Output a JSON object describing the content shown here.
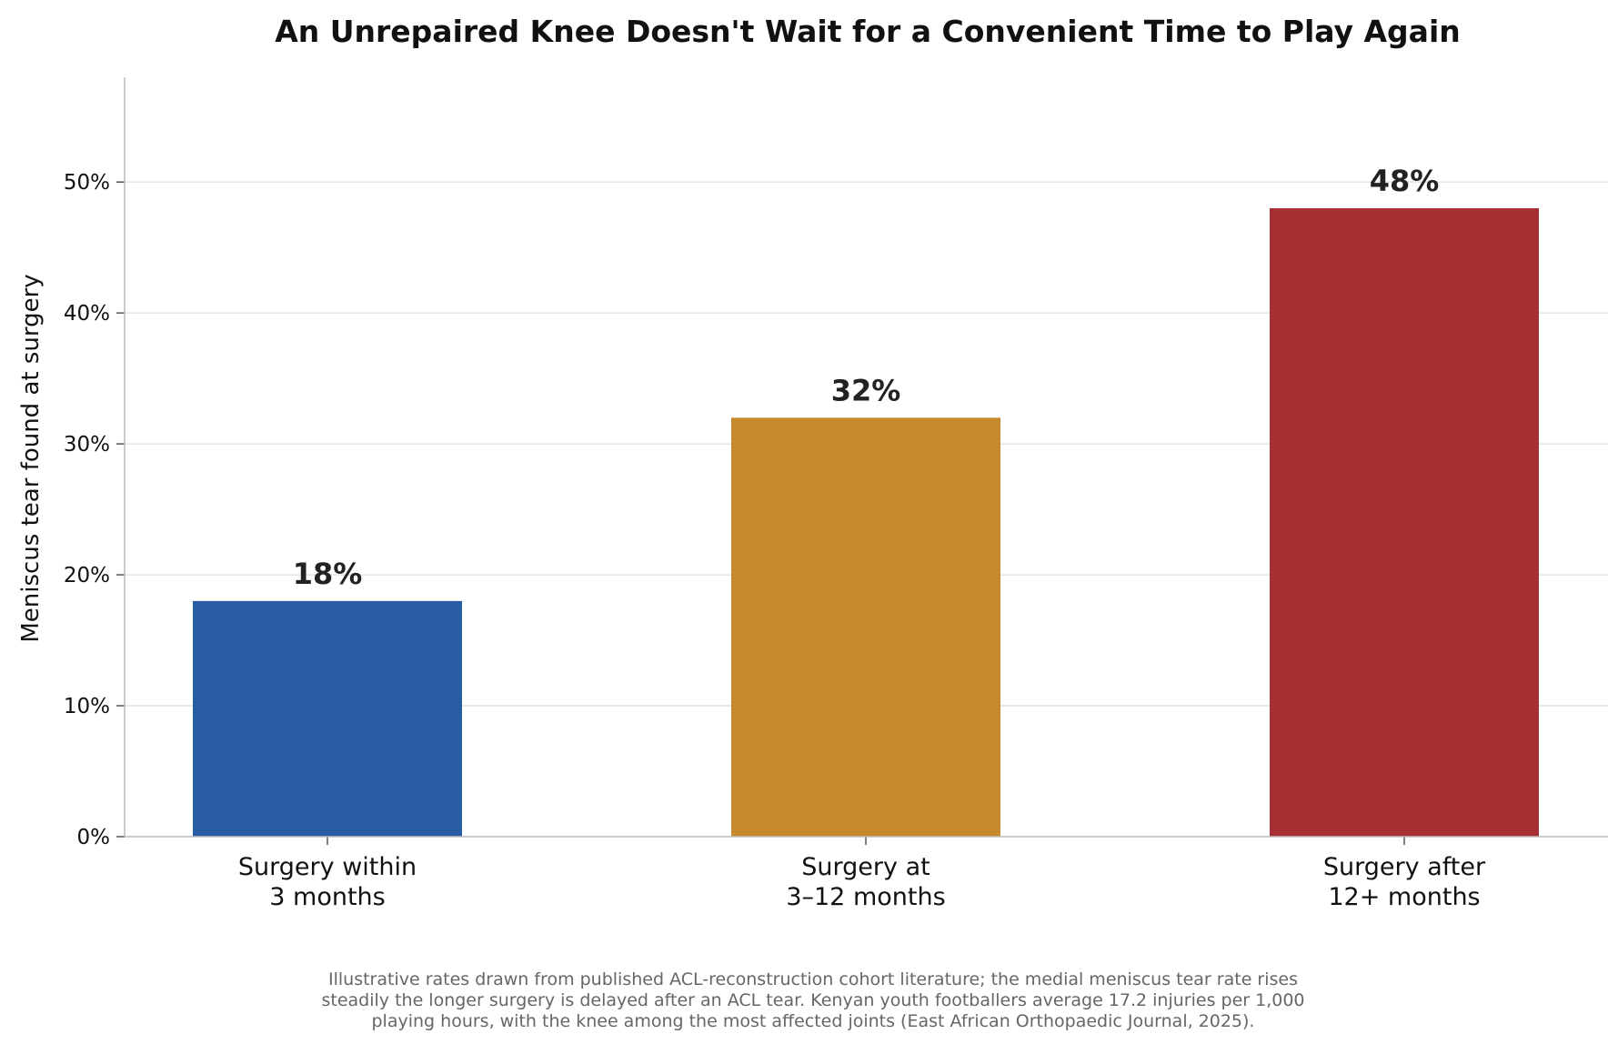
{
  "chart_data": {
    "type": "bar",
    "title": "An Unrepaired Knee Doesn't Wait for a Convenient Time to Play Again",
    "ylabel": "Meniscus tear found at surgery",
    "xlabel": "",
    "categories": [
      [
        "Surgery within",
        "3 months"
      ],
      [
        "Surgery at",
        "3–12 months"
      ],
      [
        "Surgery after",
        "12+ months"
      ]
    ],
    "values": [
      18,
      32,
      48
    ],
    "value_labels": [
      "18%",
      "32%",
      "48%"
    ],
    "colors": [
      "#2a5ca6",
      "#c68a2c",
      "#a63033"
    ],
    "ylim": [
      0,
      58
    ],
    "yticks": [
      0,
      10,
      20,
      30,
      40,
      50
    ],
    "ytick_labels": [
      "0%",
      "10%",
      "20%",
      "30%",
      "40%",
      "50%"
    ],
    "grid": true,
    "footnote": [
      "Illustrative rates drawn from published ACL-reconstruction cohort literature; the medial meniscus tear rate rises",
      "steadily the longer surgery is delayed after an ACL tear. Kenyan youth footballers average 17.2 injuries per 1,000",
      "playing hours, with the knee among the most affected joints (East African Orthopaedic Journal, 2025)."
    ]
  }
}
